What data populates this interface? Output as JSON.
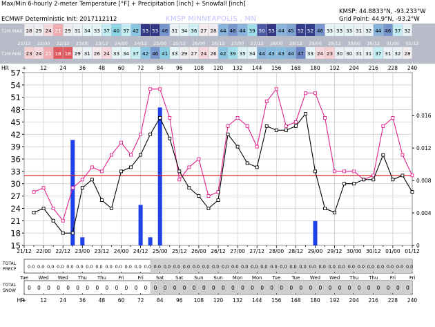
{
  "header": {
    "title": "Max/Min 6-hourly 2-meter Temperature [°F] + Precipitation [inch] + Snowfall [inch]",
    "model": "ECMWF Deterministic Init: 2017112112",
    "station_id": "KMSP: 44.8833°N, -93.233°W",
    "grid_point": "Grid Point: 44.9°N, -93.2°W",
    "location_title": "KMSP MINNEAPOLIS   , MN"
  },
  "strips": {
    "max_label": "T2M MAX",
    "min_label": "T2M MIN",
    "max_values": [
      28,
      29,
      24,
      21,
      29,
      31,
      34,
      33,
      37,
      40,
      37,
      42,
      53,
      53,
      46,
      31,
      34,
      36,
      27,
      28,
      44,
      46,
      44,
      39,
      50,
      53,
      44,
      45,
      52,
      52,
      46,
      33,
      33,
      33,
      31,
      32,
      44,
      46,
      37,
      32
    ],
    "min_values": [
      23,
      24,
      21,
      18,
      18,
      29,
      31,
      26,
      24,
      33,
      34,
      37,
      42,
      46,
      41,
      33,
      29,
      27,
      24,
      26,
      42,
      39,
      35,
      34,
      44,
      43,
      43,
      44,
      47,
      33,
      24,
      23,
      30,
      30,
      31,
      31,
      37,
      31,
      32,
      28
    ],
    "dates": [
      "21/12",
      "22/00",
      "22/12",
      "23/00",
      "23/12",
      "24/00",
      "24/12",
      "25/00",
      "25/12",
      "26/00",
      "26/12",
      "27/00",
      "27/12",
      "28/00",
      "28/12",
      "29/00",
      "29/12",
      "30/00",
      "30/12",
      "01/00",
      "01/12"
    ],
    "hours": [
      "HR",
      "+",
      "12",
      "24",
      "36",
      "48",
      "60",
      "72",
      "84",
      "96",
      "108",
      "120",
      "132",
      "144",
      "156",
      "168",
      "180",
      "192",
      "204",
      "216",
      "228",
      "240"
    ],
    "days": [
      "Tue",
      "Wed",
      "Wed",
      "Thu",
      "Thu",
      "Fri",
      "Fri",
      "Sat",
      "Sat",
      "Sun",
      "Sun",
      "Mon",
      "Mon",
      "Tue",
      "Tue",
      "Wed",
      "Wed",
      "Thu",
      "Thu",
      "Fri",
      "Fri"
    ]
  },
  "totals": {
    "precip_label_1": "TOTAL",
    "precip_label_2": "PRECP",
    "snow_label_1": "TOTAL",
    "snow_label_2": "SNOW",
    "precip_value": "0.0",
    "snow_value": "0"
  },
  "chart_data": {
    "type": "line",
    "title": "Max/Min 6-hourly 2-meter Temperature [°F] + Precipitation [inch] + Snowfall [inch]",
    "x_label": "HR",
    "x_range": [
      0,
      240
    ],
    "x_step": 6,
    "y_left_ticks": [
      15,
      18,
      21,
      24,
      27,
      30,
      33,
      36,
      39,
      42,
      45,
      48,
      51,
      54,
      57
    ],
    "y_left_range": [
      15,
      57
    ],
    "y_right_ticks": [
      0,
      0.004,
      0.008,
      0.012,
      0.016
    ],
    "y_right_range": [
      0,
      0.0213
    ],
    "freezing_line_f": 32,
    "series": [
      {
        "name": "T2M MAX",
        "color": "#e0208c",
        "values": [
          28,
          29,
          24,
          21,
          29,
          31,
          34,
          33,
          37,
          40,
          37,
          42,
          53,
          53,
          46,
          31,
          34,
          36,
          27,
          28,
          44,
          46,
          44,
          39,
          50,
          53,
          44,
          45,
          52,
          52,
          46,
          33,
          33,
          33,
          31,
          32,
          44,
          46,
          37,
          32
        ]
      },
      {
        "name": "T2M MIN",
        "color": "#000000",
        "values": [
          23,
          24,
          21,
          18,
          18,
          29,
          31,
          26,
          24,
          33,
          34,
          37,
          42,
          46,
          41,
          33,
          29,
          27,
          24,
          26,
          42,
          39,
          35,
          34,
          44,
          43,
          43,
          44,
          47,
          33,
          24,
          23,
          30,
          30,
          31,
          31,
          37,
          31,
          32,
          28
        ]
      },
      {
        "name": "Precipitation",
        "type": "bar",
        "color": "#2040e8",
        "values": [
          0,
          0,
          0,
          0,
          0.013,
          0.001,
          0,
          0,
          0,
          0,
          0,
          0.005,
          0.001,
          0.017,
          0,
          0,
          0,
          0,
          0,
          0,
          0,
          0,
          0,
          0,
          0,
          0,
          0,
          0,
          0,
          0.003,
          0,
          0,
          0,
          0,
          0,
          0,
          0,
          0,
          0,
          0
        ]
      }
    ],
    "grid": true
  }
}
